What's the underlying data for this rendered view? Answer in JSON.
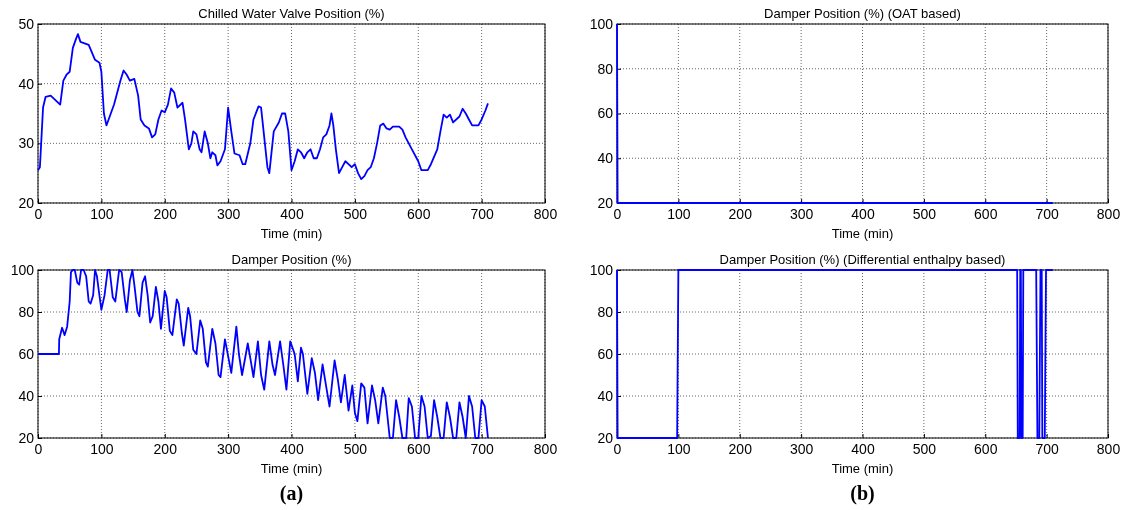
{
  "chart_data": [
    {
      "type": "line",
      "title": "Chilled Water Valve Position (%)",
      "xlabel": "Time (min)",
      "xlim": [
        0,
        800
      ],
      "xticks": [
        0,
        100,
        200,
        300,
        400,
        500,
        600,
        700,
        800
      ],
      "ylim": [
        20,
        50
      ],
      "yticks": [
        20,
        30,
        40,
        50
      ],
      "grid": true,
      "series": [
        {
          "color": "#0000ff",
          "x": [
            0,
            3,
            5,
            8,
            12,
            20,
            35,
            40,
            45,
            50,
            55,
            60,
            63,
            67,
            80,
            90,
            97,
            100,
            104,
            108,
            120,
            130,
            135,
            140,
            145,
            152,
            158,
            162,
            168,
            175,
            180,
            185,
            190,
            195,
            200,
            205,
            210,
            215,
            220,
            228,
            232,
            238,
            242,
            245,
            250,
            255,
            258,
            263,
            268,
            272,
            275,
            280,
            283,
            288,
            295,
            300,
            305,
            310,
            318,
            323,
            327,
            335,
            340,
            348,
            352,
            358,
            362,
            365,
            372,
            380,
            385,
            390,
            395,
            400,
            405,
            410,
            415,
            420,
            425,
            430,
            435,
            440,
            445,
            450,
            455,
            460,
            463,
            466,
            470,
            475,
            480,
            485,
            490,
            495,
            500,
            505,
            510,
            515,
            520,
            525,
            530,
            535,
            540,
            545,
            550,
            555,
            560,
            570,
            575,
            580,
            590,
            600,
            605,
            615,
            620,
            630,
            635,
            640,
            645,
            650,
            655,
            665,
            670,
            675,
            680,
            685,
            695,
            700,
            706,
            710
          ],
          "values": [
            25.5,
            26,
            30,
            36,
            37.8,
            38,
            36.5,
            40.5,
            41.5,
            42,
            46,
            47.5,
            48.3,
            47,
            46.5,
            44,
            43.5,
            42,
            35,
            33,
            36.5,
            40.5,
            42.2,
            41.5,
            40.5,
            40.8,
            38,
            34,
            33,
            32.5,
            31,
            31.5,
            34,
            35.5,
            35.2,
            36.5,
            39.2,
            38.5,
            36,
            36.8,
            34,
            29,
            30,
            32,
            31.5,
            29,
            28.5,
            32,
            30,
            27.5,
            28.5,
            28,
            26.3,
            27,
            29,
            36,
            32,
            28.3,
            28,
            26.5,
            26.5,
            30,
            34,
            36.2,
            36,
            30,
            26,
            25,
            32,
            33.5,
            35,
            35,
            32,
            25.5,
            27,
            29,
            28.5,
            27.5,
            28.5,
            29,
            27.5,
            27.5,
            29,
            31,
            31.5,
            33,
            35,
            33,
            29,
            25,
            26,
            27,
            26.5,
            26,
            26.5,
            25,
            24,
            24.5,
            25.5,
            26,
            27.5,
            30,
            33,
            33.3,
            32.5,
            32.3,
            32.8,
            32.8,
            32.3,
            31,
            29,
            27,
            25.5,
            25.5,
            26.5,
            29,
            32,
            34.8,
            34.3,
            34.8,
            33.5,
            34.5,
            35.8,
            35,
            34,
            33,
            33,
            34,
            35.5,
            36.7
          ]
        }
      ]
    },
    {
      "type": "line",
      "title": "Damper Position (%) (OAT based)",
      "xlabel": "Time (min)",
      "xlim": [
        0,
        800
      ],
      "xticks": [
        0,
        100,
        200,
        300,
        400,
        500,
        600,
        700,
        800
      ],
      "ylim": [
        20,
        100
      ],
      "yticks": [
        20,
        40,
        60,
        80,
        100
      ],
      "grid": true,
      "series": [
        {
          "color": "#0000ff",
          "x": [
            0,
            1,
            710
          ],
          "values": [
            100,
            20,
            20
          ]
        }
      ]
    },
    {
      "type": "line",
      "title": "Damper Position (%)",
      "xlabel": "Time (min)",
      "xlim": [
        0,
        800
      ],
      "xticks": [
        0,
        100,
        200,
        300,
        400,
        500,
        600,
        700,
        800
      ],
      "ylim": [
        20,
        100
      ],
      "yticks": [
        20,
        40,
        60,
        80,
        100
      ],
      "grid": true,
      "annotations": [
        "(a)"
      ],
      "series": [
        {
          "color": "#0000ff",
          "x": [
            0,
            33,
            33.5,
            38,
            42,
            46,
            50,
            52,
            55,
            58,
            62,
            65,
            68,
            72,
            76,
            80,
            83,
            87,
            90,
            93,
            96,
            100,
            105,
            110,
            113,
            118,
            122,
            128,
            132,
            137,
            140,
            145,
            149,
            152,
            157,
            160,
            165,
            169,
            173,
            177,
            181,
            186,
            190,
            194,
            200,
            203,
            208,
            212,
            219,
            222,
            227,
            230,
            237,
            240,
            245,
            250,
            256,
            260,
            265,
            268,
            275,
            280,
            285,
            288,
            295,
            300,
            305,
            313,
            317,
            322,
            331,
            335,
            340,
            347,
            352,
            357,
            365,
            370,
            374,
            382,
            387,
            392,
            398,
            405,
            410,
            415,
            418,
            425,
            432,
            437,
            442,
            449,
            455,
            460,
            468,
            473,
            478,
            484,
            490,
            496,
            500,
            504,
            510,
            515,
            520,
            527,
            532,
            537,
            544,
            548,
            555,
            560,
            565,
            570,
            575,
            581,
            585,
            590,
            595,
            600,
            605,
            610,
            615,
            620,
            625,
            630,
            635,
            640,
            645,
            650,
            655,
            660,
            665,
            670,
            675,
            680,
            685,
            690,
            695,
            700,
            705,
            710
          ],
          "values": [
            60,
            60,
            67,
            72.5,
            69,
            73,
            85,
            99,
            100,
            100,
            94,
            93,
            100,
            100,
            97,
            85,
            84,
            88,
            100,
            97,
            90,
            81,
            88,
            100,
            100,
            87,
            85,
            100,
            99,
            86,
            80,
            95,
            100,
            93,
            80,
            78,
            94,
            97,
            88,
            75,
            78,
            92,
            85,
            72,
            90,
            87,
            71,
            69,
            86,
            84,
            70,
            64,
            82,
            78,
            62,
            60,
            76,
            72,
            56,
            54,
            72,
            65,
            50,
            49,
            67,
            59,
            51,
            73,
            60,
            50,
            65,
            58,
            49,
            66,
            50,
            43,
            66,
            55,
            50,
            66,
            55,
            43,
            66,
            60,
            47,
            63,
            60,
            41,
            58,
            51,
            38,
            55,
            44,
            35,
            57,
            48,
            37,
            50,
            33,
            45,
            32,
            28,
            46,
            44,
            27,
            45,
            38,
            27,
            44,
            40,
            20,
            20,
            38,
            30,
            20,
            20,
            39,
            35,
            20,
            20,
            40,
            35,
            20,
            21,
            38,
            30,
            20,
            20,
            37,
            30,
            20,
            20,
            37,
            30,
            20,
            40,
            35,
            20,
            20,
            38,
            35,
            20
          ]
        }
      ]
    },
    {
      "type": "line",
      "title": "Damper Position (%) (Differential enthalpy based)",
      "xlabel": "Time (min)",
      "xlim": [
        0,
        800
      ],
      "xticks": [
        0,
        100,
        200,
        300,
        400,
        500,
        600,
        700,
        800
      ],
      "ylim": [
        20,
        100
      ],
      "yticks": [
        20,
        40,
        60,
        80,
        100
      ],
      "grid": true,
      "annotations": [
        "(b)"
      ],
      "series": [
        {
          "color": "#0000ff",
          "x": [
            0,
            1,
            98,
            100,
            652,
            653,
            656,
            657,
            658,
            659,
            661,
            662,
            683,
            685,
            688,
            690,
            692,
            693,
            697,
            699,
            710
          ],
          "values": [
            100,
            20,
            20,
            100,
            100,
            20,
            20,
            100,
            100,
            20,
            20,
            100,
            100,
            20,
            20,
            100,
            100,
            20,
            20,
            100,
            100
          ]
        }
      ]
    }
  ]
}
